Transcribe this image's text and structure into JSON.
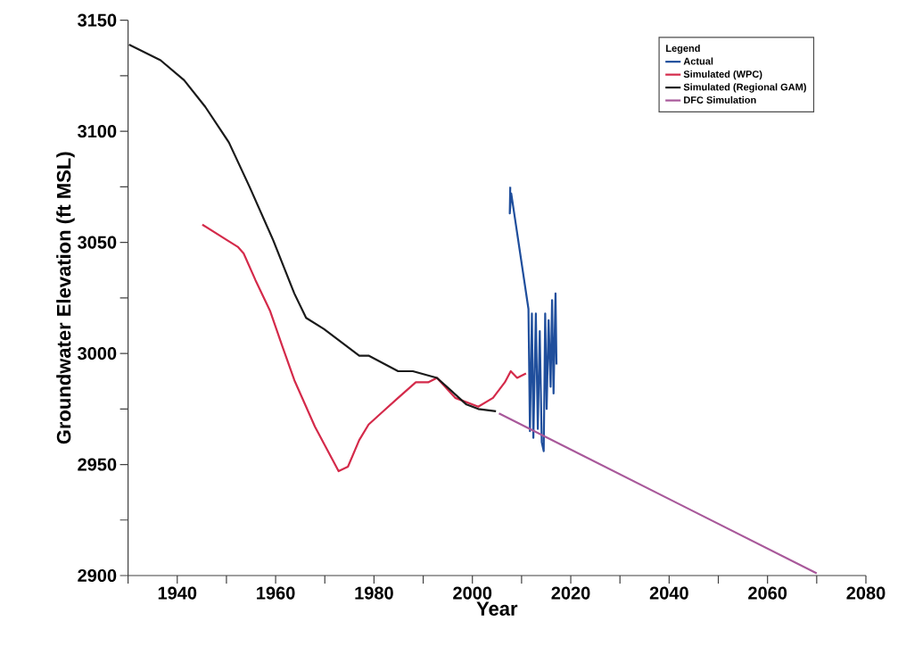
{
  "chart_data": {
    "type": "line",
    "xlabel": "Year",
    "ylabel": "Groundwater Elevation (ft MSL)",
    "legend_title": "Legend",
    "legend": "top right",
    "grid": false,
    "marker": "none",
    "line_style": "solid",
    "xlim": [
      1930,
      2080
    ],
    "ylim": [
      2900,
      3150
    ],
    "xticks": [
      {
        "value": 1930,
        "label": null
      },
      1940,
      {
        "value": 1950,
        "label": null
      },
      1960,
      {
        "value": 1970,
        "label": null
      },
      1980,
      {
        "value": 1990,
        "label": null
      },
      2000,
      {
        "value": 2010,
        "label": null
      },
      2020,
      {
        "value": 2030,
        "label": null
      },
      2040,
      {
        "value": 2050,
        "label": null
      },
      2060,
      {
        "value": 2070,
        "label": null
      },
      2080
    ],
    "yticks": [
      2900,
      {
        "value": 2925,
        "label": null
      },
      2950,
      {
        "value": 2975,
        "label": null
      },
      3000,
      {
        "value": 3025,
        "label": null
      },
      3050,
      {
        "value": 3075,
        "label": null
      },
      3100,
      {
        "value": 3125,
        "label": null
      },
      3150
    ],
    "series": [
      {
        "name": "Actual",
        "color": "#1f4e9c",
        "x": [
          2007.7,
          2007.6,
          2007.9,
          2011.4,
          2011.7,
          2012.1,
          2012.4,
          2012.9,
          2013.3,
          2013.7,
          2014.1,
          2014.5,
          2014.8,
          2015.1,
          2015.5,
          2015.9,
          2016.2,
          2016.5,
          2016.9,
          2017.1
        ],
        "values": [
          3075,
          3063,
          3072,
          3020,
          2965,
          3018,
          2962,
          3018,
          2966,
          3010,
          2960,
          2956,
          3018,
          2975,
          3015,
          2985,
          3024,
          2982,
          3027,
          2995
        ]
      },
      {
        "name": "Simulated (WPC)",
        "color": "#d42a4a",
        "x": [
          1945.1,
          1952.3,
          1953.5,
          1955.9,
          1958.9,
          1961.4,
          1963.8,
          1968,
          1972.8,
          1974.7,
          1977,
          1978.9,
          1981.9,
          1984.9,
          1988.5,
          1991,
          1992.8,
          1996.5,
          2001.2,
          2004.2,
          2006.6,
          2007.8,
          2009.1,
          2010.9
        ],
        "values": [
          3058,
          3048,
          3045,
          3033,
          3019,
          3003,
          2988,
          2967,
          2947,
          2949,
          2961,
          2968,
          2974,
          2980,
          2987,
          2987,
          2989,
          2980,
          2976,
          2980,
          2987,
          2992,
          2989,
          2991
        ]
      },
      {
        "name": "Simulated (Regional GAM)",
        "color": "#1a1a1a",
        "x": [
          1930.2,
          1936.6,
          1941.4,
          1945.7,
          1950.5,
          1954.7,
          1959.5,
          1963.8,
          1966.2,
          1969.8,
          1973.4,
          1977,
          1978.9,
          1984.9,
          1987.9,
          1992.8,
          1995.8,
          1998.8,
          2001.2,
          2004.8
        ],
        "values": [
          3139,
          3132,
          3123,
          3111,
          3095,
          3075,
          3051,
          3027,
          3016,
          3011,
          3005,
          2999,
          2999,
          2992,
          2992,
          2989,
          2983,
          2977,
          2975,
          2974
        ]
      },
      {
        "name": "DFC Simulation",
        "color": "#a8589a",
        "x": [
          2005.4,
          2070
        ],
        "values": [
          2973,
          2901
        ]
      }
    ]
  }
}
